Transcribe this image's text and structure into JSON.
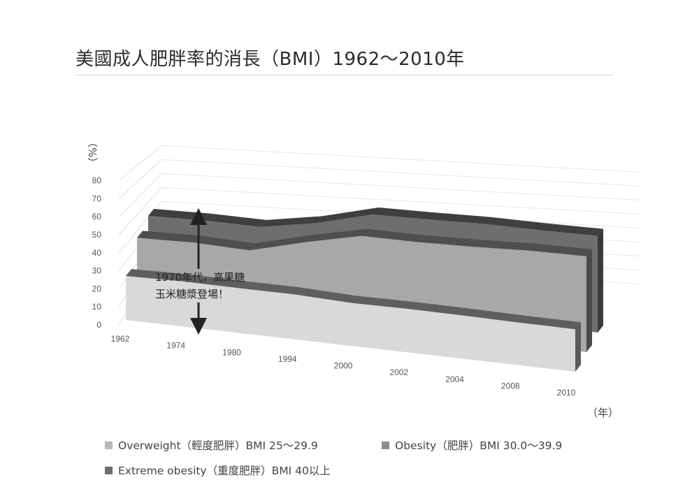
{
  "title": "美國成人肥胖率的消長（BMI）1962～2010年",
  "chart_data": {
    "type": "area",
    "title": "美國成人肥胖率的消長（BMI）1962～2010年",
    "ylabel": "（%）",
    "xlabel": "（年）",
    "ylim": [
      0,
      80
    ],
    "yticks": [
      "0",
      "10",
      "20",
      "30",
      "40",
      "50",
      "60",
      "70",
      "80"
    ],
    "categories": [
      "1962",
      "1974",
      "1980",
      "1994",
      "2000",
      "2002",
      "2004",
      "2008",
      "2010"
    ],
    "series": [
      {
        "name": "Overweight（輕度肥胖）BMI 25～29.9",
        "color": "#d9d9d9",
        "values": [
          31.5,
          32.3,
          32.1,
          32.2,
          30.8,
          31.2,
          31.0,
          30.5,
          30.4
        ]
      },
      {
        "name": "Obesity（肥胖）BMI 30.0～39.9",
        "color": "#a6a6a6",
        "values": [
          44.8,
          46.1,
          45.1,
          55.6,
          64.7,
          64.9,
          66.1,
          68.0,
          68.6
        ]
      },
      {
        "name": "Extreme obesity（重度肥胖）BMI 40以上",
        "color": "#6e6e6e",
        "values": [
          46.5,
          47.8,
          47.8,
          55.2,
          66.0,
          67.0,
          68.4,
          68.5,
          69.2
        ]
      }
    ],
    "annotation": {
      "line1": "1970年代，高果糖",
      "line2": "玉米糖漿登場！",
      "category": "1974"
    },
    "grid": true,
    "legend_position": "bottom"
  }
}
